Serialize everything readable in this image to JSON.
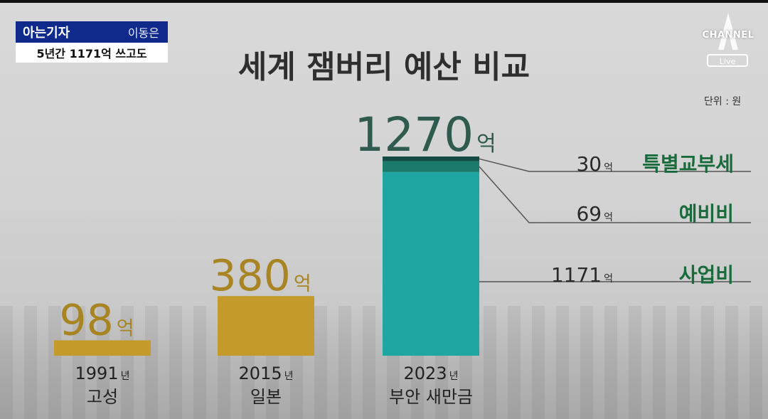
{
  "reporter": {
    "label": "아는기자",
    "name": "이동은",
    "headline": "5년간 1171억 쓰고도"
  },
  "logo": {
    "text": "CHANNEL",
    "badge": "Live"
  },
  "colors": {
    "gold": "#c49a2a",
    "teal": "#1ea6a2",
    "teal_dark": "#124c45",
    "green_text": "#1a6b3c",
    "reporter_blue": "#0f2a8a"
  },
  "chart_data": {
    "type": "bar",
    "title": "세계 잼버리 예산 비교",
    "unit_label": "단위 : 원",
    "value_unit": "억",
    "categories": [
      {
        "year": "1991",
        "year_unit": "년",
        "place": "고성"
      },
      {
        "year": "2015",
        "year_unit": "년",
        "place": "일본"
      },
      {
        "year": "2023",
        "year_unit": "년",
        "place": "부안 새만금"
      }
    ],
    "values": [
      98,
      380,
      1270
    ],
    "value_labels": [
      "98",
      "380",
      "1270"
    ],
    "breakdown": [
      {
        "name": "특별교부세",
        "value": 30,
        "label": "30"
      },
      {
        "name": "예비비",
        "value": 69,
        "label": "69"
      },
      {
        "name": "사업비",
        "value": 1171,
        "label": "1171"
      }
    ],
    "ylim": [
      0,
      1270
    ]
  }
}
